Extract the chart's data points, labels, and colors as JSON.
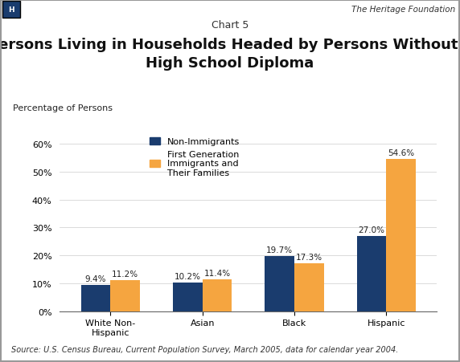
{
  "chart_label": "Chart 5",
  "title": "Persons Living in Households Headed by Persons Without a\nHigh School Diploma",
  "ylabel": "Percentage of Persons",
  "categories": [
    "White Non-\nHispanic",
    "Asian",
    "Black",
    "Hispanic"
  ],
  "non_immigrants": [
    9.4,
    10.2,
    19.7,
    27.0
  ],
  "first_gen": [
    11.2,
    11.4,
    17.3,
    54.6
  ],
  "non_immigrants_labels": [
    "9.4%",
    "10.2%",
    "19.7%",
    "27.0%"
  ],
  "first_gen_labels": [
    "11.2%",
    "11.4%",
    "17.3%",
    "54.6%"
  ],
  "color_non_immigrants": "#1a3c6e",
  "color_first_gen": "#f5a540",
  "ylim": [
    0,
    65
  ],
  "yticks": [
    0,
    10,
    20,
    30,
    40,
    50,
    60
  ],
  "ytick_labels": [
    "0%",
    "10%",
    "20%",
    "30%",
    "40%",
    "50%",
    "60%"
  ],
  "legend_label_1": "Non-Immigrants",
  "legend_label_2": "First Generation\nImmigrants and\nTheir Families",
  "source_text": "Source: U.S. Census Bureau, Current Population Survey, March 2005, data for calendar year 2004.",
  "bar_width": 0.32,
  "background_color": "#ffffff",
  "border_color": "#999999",
  "header_bg_color": "#e0e0e0",
  "header_text": "The Heritage Foundation",
  "header_logo_color": "#1a3c6e",
  "chart_label_fontsize": 9,
  "title_fontsize": 13,
  "tick_fontsize": 8,
  "label_fontsize": 7.5,
  "source_fontsize": 7,
  "legend_fontsize": 8
}
